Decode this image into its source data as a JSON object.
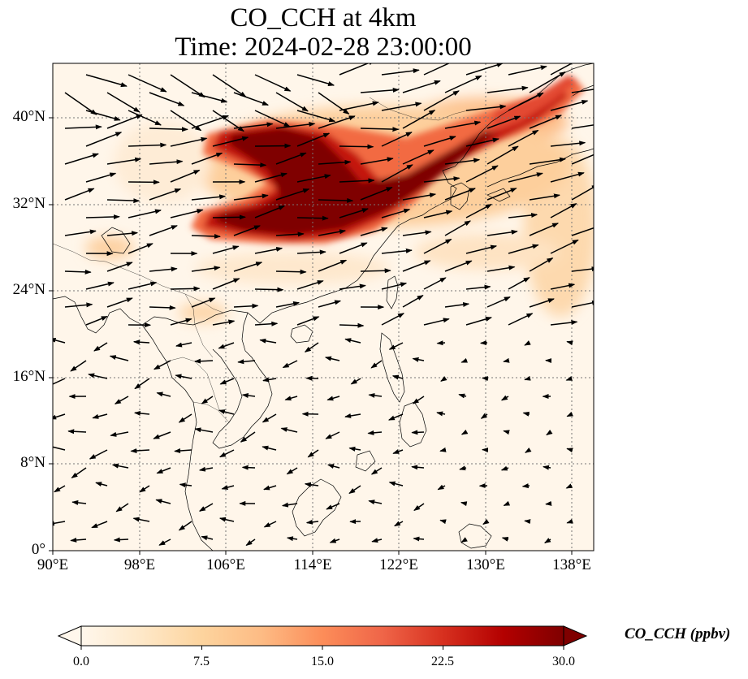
{
  "title": {
    "line1": "CO_CCH at 4km",
    "line2": "Time: 2024-02-28 23:00:00"
  },
  "map": {
    "lon_range": [
      90,
      140
    ],
    "lat_range": [
      0,
      44
    ],
    "lat_labels": [
      "0°",
      "8°N",
      "16°N",
      "24°N",
      "32°N",
      "40°N"
    ],
    "lon_labels": [
      "90°E",
      "98°E",
      "106°E",
      "114°E",
      "122°E",
      "130°E",
      "138°E"
    ],
    "gridlines": "dotted"
  },
  "colorbar": {
    "label": "CO_CCH (ppbv)",
    "ticks": [
      "0.0",
      "7.5",
      "15.0",
      "22.5",
      "30.0"
    ],
    "range": [
      0,
      30
    ],
    "colormap": "OrRd",
    "extend": "both"
  },
  "colors": {
    "low": "#fff7ec",
    "mid": "#fdbb84",
    "high": "#7f0000"
  }
}
